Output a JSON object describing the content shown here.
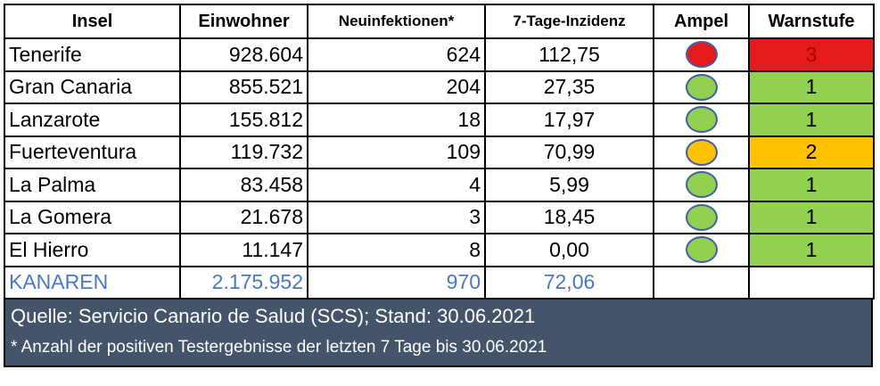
{
  "table": {
    "headers": [
      "Insel",
      "Einwohner",
      "Neuinfektionen*",
      "7-Tage-Inzidenz",
      "Ampel",
      "Warnstufe"
    ],
    "rows": [
      {
        "insel": "Tenerife",
        "einwohner": "928.604",
        "neu": "624",
        "inzidenz": "112,75",
        "ampel": "red",
        "warnstufe": "3"
      },
      {
        "insel": "Gran Canaria",
        "einwohner": "855.521",
        "neu": "204",
        "inzidenz": "27,35",
        "ampel": "green",
        "warnstufe": "1"
      },
      {
        "insel": "Lanzarote",
        "einwohner": "155.812",
        "neu": "18",
        "inzidenz": "17,97",
        "ampel": "green",
        "warnstufe": "1"
      },
      {
        "insel": "Fuerteventura",
        "einwohner": "119.732",
        "neu": "109",
        "inzidenz": "70,99",
        "ampel": "orange",
        "warnstufe": "2"
      },
      {
        "insel": "La Palma",
        "einwohner": "83.458",
        "neu": "4",
        "inzidenz": "5,99",
        "ampel": "green",
        "warnstufe": "1"
      },
      {
        "insel": "La Gomera",
        "einwohner": "21.678",
        "neu": "3",
        "inzidenz": "18,45",
        "ampel": "green",
        "warnstufe": "1"
      },
      {
        "insel": "El Hierro",
        "einwohner": "11.147",
        "neu": "8",
        "inzidenz": "0,00",
        "ampel": "green",
        "warnstufe": "1"
      }
    ],
    "total": {
      "insel": "KANAREN",
      "einwohner": "2.175.952",
      "neu": "970",
      "inzidenz": "72,06"
    }
  },
  "colors": {
    "red": "#e41a1c",
    "green": "#92d050",
    "orange": "#ffc000",
    "total_text": "#4a78c4",
    "footer_bg": "#44546a"
  },
  "footer": {
    "source": "Quelle: Servicio Canario de Salud (SCS); Stand: 30.06.2021",
    "note": "* Anzahl der positiven Testergebnisse der letzten 7 Tage bis 30.06.2021"
  }
}
